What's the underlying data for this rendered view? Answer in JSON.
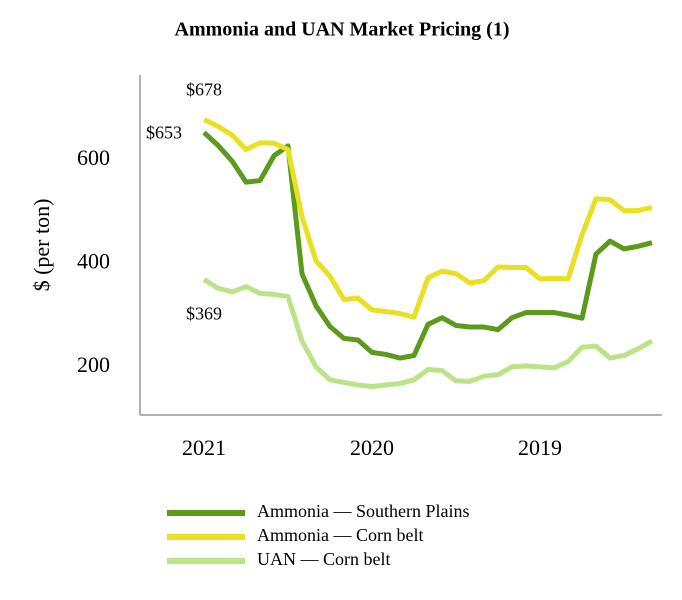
{
  "chart_data": {
    "type": "line",
    "title": "Ammonia and UAN Market Pricing (1)",
    "ylabel": "$ (per ton)",
    "categories": [
      "2021",
      null,
      null,
      null,
      null,
      null,
      null,
      null,
      null,
      null,
      null,
      null,
      "2020",
      null,
      null,
      null,
      null,
      null,
      null,
      null,
      null,
      null,
      null,
      null,
      "2019",
      null,
      null,
      null,
      null,
      null,
      null,
      null,
      null
    ],
    "ylim": [
      107,
      764
    ],
    "yticks": [
      200,
      400,
      600
    ],
    "grid": false,
    "legend": "bottom",
    "series": [
      {
        "name": "Ammonia — Southern Plains",
        "color": "#5c9a1c",
        "values": [
          653,
          628,
          598,
          557,
          560,
          608,
          627,
          380,
          318,
          278,
          255,
          252,
          228,
          224,
          217,
          222,
          282,
          295,
          280,
          277,
          277,
          272,
          295,
          305,
          305,
          305,
          300,
          294,
          418,
          443,
          428,
          433,
          440
        ]
      },
      {
        "name": "Ammonia — Corn belt",
        "color": "#e8e020",
        "values": [
          678,
          665,
          648,
          620,
          633,
          632,
          620,
          490,
          405,
          375,
          330,
          333,
          310,
          307,
          303,
          296,
          372,
          385,
          380,
          362,
          367,
          393,
          392,
          392,
          370,
          371,
          370,
          455,
          525,
          523,
          502,
          502,
          508
        ]
      },
      {
        "name": "UAN — Corn belt",
        "color": "#bde38a",
        "values": [
          369,
          352,
          345,
          355,
          342,
          340,
          336,
          250,
          200,
          175,
          170,
          165,
          162,
          165,
          168,
          175,
          195,
          193,
          173,
          172,
          182,
          185,
          200,
          202,
          200,
          198,
          210,
          238,
          240,
          217,
          222,
          235,
          250
        ]
      }
    ],
    "annotations": [
      "$678",
      "$653",
      "$369"
    ]
  }
}
